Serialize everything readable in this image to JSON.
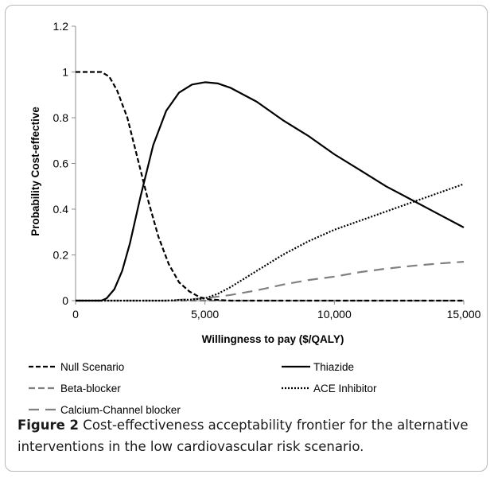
{
  "chart_data": {
    "type": "line",
    "xlabel": "Willingness to pay ($/QALY)",
    "ylabel": "Probability Cost-effective",
    "xlim": [
      0,
      15000
    ],
    "ylim": [
      0,
      1.2
    ],
    "x_ticks": [
      0,
      5000,
      10000,
      15000
    ],
    "x_tick_labels": [
      "0",
      "5,000",
      "10,000",
      "15,000"
    ],
    "y_ticks": [
      0,
      0.2,
      0.4,
      0.6,
      0.8,
      1,
      1.2
    ],
    "y_tick_labels": [
      "0",
      "0.2",
      "0.4",
      "0.6",
      "0.8",
      "1",
      "1.2"
    ],
    "grid": false,
    "legend_position": "bottom",
    "series": [
      {
        "name": "Null Scenario",
        "style": "short-dash",
        "color": "#000000",
        "x": [
          0,
          1000,
          1300,
          1600,
          2000,
          2400,
          2800,
          3200,
          3600,
          4000,
          4400,
          4800,
          5200,
          6000,
          8000,
          10000,
          12000,
          15000
        ],
        "y": [
          1.0,
          1.0,
          0.98,
          0.92,
          0.8,
          0.62,
          0.44,
          0.28,
          0.16,
          0.08,
          0.04,
          0.015,
          0.005,
          0,
          0,
          0,
          0,
          0
        ]
      },
      {
        "name": "Thiazide",
        "style": "solid",
        "color": "#000000",
        "x": [
          0,
          1000,
          1200,
          1500,
          1800,
          2100,
          2500,
          3000,
          3500,
          4000,
          4500,
          5000,
          5500,
          6000,
          7000,
          8000,
          9000,
          10000,
          11000,
          12000,
          13000,
          14000,
          15000
        ],
        "y": [
          0,
          0,
          0.01,
          0.05,
          0.13,
          0.25,
          0.45,
          0.68,
          0.83,
          0.91,
          0.945,
          0.955,
          0.95,
          0.93,
          0.87,
          0.79,
          0.72,
          0.64,
          0.57,
          0.5,
          0.44,
          0.38,
          0.32
        ]
      },
      {
        "name": "Beta-blocker",
        "style": "dash",
        "color": "#808080",
        "x": [
          0,
          15000
        ],
        "y": [
          0,
          0
        ]
      },
      {
        "name": "ACE Inhibitor",
        "style": "dotted",
        "color": "#000000",
        "x": [
          0,
          3500,
          4500,
          5000,
          5500,
          6000,
          7000,
          8000,
          9000,
          10000,
          11000,
          12000,
          13000,
          14000,
          15000
        ],
        "y": [
          0,
          0,
          0.005,
          0.01,
          0.03,
          0.06,
          0.13,
          0.2,
          0.26,
          0.31,
          0.35,
          0.39,
          0.43,
          0.47,
          0.51
        ]
      },
      {
        "name": "Calcium-Channel blocker",
        "style": "long-dash",
        "color": "#808080",
        "x": [
          0,
          3500,
          5000,
          6000,
          7000,
          8000,
          9000,
          10000,
          11000,
          12000,
          13000,
          14000,
          15000
        ],
        "y": [
          0,
          0,
          0.01,
          0.025,
          0.045,
          0.07,
          0.09,
          0.105,
          0.125,
          0.14,
          0.152,
          0.162,
          0.17
        ]
      }
    ]
  },
  "caption": {
    "label": "Figure 2",
    "text": " Cost-effectiveness acceptability frontier for the alternative interventions in the low cardiovascular risk scenario."
  }
}
